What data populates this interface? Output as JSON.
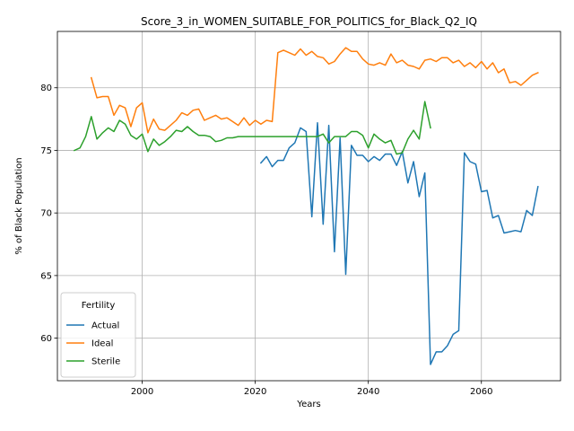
{
  "chart_data": {
    "type": "line",
    "title": "Score_3_in_WOMEN_SUITABLE_FOR_POLITICS_for_Black_Q2_IQ",
    "xlabel": "Years",
    "ylabel": "% of Black Population",
    "xlim": [
      1985,
      2074
    ],
    "ylim": [
      56.6,
      84.5
    ],
    "x_ticks": [
      2000,
      2020,
      2040,
      2060
    ],
    "y_ticks": [
      60,
      65,
      70,
      75,
      80
    ],
    "grid": true,
    "legend": {
      "title": "Fertility",
      "placement": "lower-left"
    },
    "series": [
      {
        "name": "Actual",
        "color": "#1f77b4",
        "x": [
          2021,
          2022,
          2023,
          2024,
          2025,
          2026,
          2027,
          2028,
          2029,
          2030,
          2031,
          2032,
          2033,
          2034,
          2035,
          2036,
          2037,
          2038,
          2039,
          2040,
          2041,
          2042,
          2043,
          2044,
          2045,
          2046,
          2047,
          2048,
          2049,
          2050,
          2051,
          2052,
          2053,
          2054,
          2055,
          2056,
          2057,
          2058,
          2059,
          2060,
          2061,
          2062,
          2063,
          2064,
          2065,
          2066,
          2067,
          2068,
          2069,
          2070
        ],
        "values": [
          74.0,
          74.5,
          73.7,
          74.2,
          74.2,
          75.2,
          75.6,
          76.8,
          76.5,
          69.7,
          77.2,
          69.1,
          77.0,
          66.9,
          76.0,
          65.1,
          75.4,
          74.6,
          74.6,
          74.1,
          74.5,
          74.2,
          74.7,
          74.7,
          73.8,
          74.9,
          72.4,
          74.1,
          71.3,
          73.2,
          57.9,
          58.9,
          58.9,
          59.4,
          60.3,
          60.6,
          74.8,
          74.1,
          73.9,
          71.7,
          71.8,
          69.6,
          69.8,
          68.4,
          68.5,
          68.6,
          68.5,
          70.2,
          69.8,
          72.1
        ]
      },
      {
        "name": "Ideal",
        "color": "#ff7f0e",
        "x": [
          1991,
          1992,
          1993,
          1994,
          1995,
          1996,
          1997,
          1998,
          1999,
          2000,
          2001,
          2002,
          2003,
          2004,
          2005,
          2006,
          2007,
          2008,
          2009,
          2010,
          2011,
          2012,
          2013,
          2014,
          2015,
          2016,
          2017,
          2018,
          2019,
          2020,
          2021,
          2022,
          2023,
          2024,
          2025,
          2026,
          2027,
          2028,
          2029,
          2030,
          2031,
          2032,
          2033,
          2034,
          2035,
          2036,
          2037,
          2038,
          2039,
          2040,
          2041,
          2042,
          2043,
          2044,
          2045,
          2046,
          2047,
          2048,
          2049,
          2050,
          2051,
          2052,
          2053,
          2054,
          2055,
          2056,
          2057,
          2058,
          2059,
          2060,
          2061,
          2062,
          2063,
          2064,
          2065,
          2066,
          2067,
          2068,
          2069,
          2070
        ],
        "values": [
          80.8,
          79.2,
          79.3,
          79.3,
          77.8,
          78.6,
          78.4,
          76.9,
          78.4,
          78.8,
          76.4,
          77.5,
          76.7,
          76.6,
          77.0,
          77.4,
          78.0,
          77.8,
          78.2,
          78.3,
          77.4,
          77.6,
          77.8,
          77.5,
          77.6,
          77.3,
          77.0,
          77.6,
          77.0,
          77.4,
          77.1,
          77.4,
          77.3,
          82.8,
          83.0,
          82.8,
          82.6,
          83.1,
          82.6,
          82.9,
          82.5,
          82.4,
          81.9,
          82.1,
          82.7,
          83.2,
          82.9,
          82.9,
          82.3,
          81.9,
          81.8,
          82.0,
          81.8,
          82.7,
          82.0,
          82.2,
          81.8,
          81.7,
          81.5,
          82.2,
          82.3,
          82.1,
          82.4,
          82.4,
          82.0,
          82.2,
          81.7,
          82.0,
          81.6,
          82.1,
          81.5,
          82.0,
          81.2,
          81.5,
          80.4,
          80.5,
          80.2,
          80.6,
          81.0,
          81.2
        ]
      },
      {
        "name": "Sterile",
        "color": "#2ca02c",
        "x": [
          1988,
          1989,
          1990,
          1991,
          1992,
          1993,
          1994,
          1995,
          1996,
          1997,
          1998,
          1999,
          2000,
          2001,
          2002,
          2003,
          2004,
          2005,
          2006,
          2007,
          2008,
          2009,
          2010,
          2011,
          2012,
          2013,
          2014,
          2015,
          2016,
          2017,
          2018,
          2019,
          2020,
          2021,
          2022,
          2023,
          2024,
          2025,
          2026,
          2027,
          2028,
          2029,
          2030,
          2031,
          2032,
          2033,
          2034,
          2035,
          2036,
          2037,
          2038,
          2039,
          2040,
          2041,
          2042,
          2043,
          2044,
          2045,
          2046,
          2047,
          2048,
          2049,
          2050,
          2051
        ],
        "values": [
          75.0,
          75.2,
          76.1,
          77.7,
          75.9,
          76.4,
          76.8,
          76.5,
          77.4,
          77.1,
          76.2,
          75.9,
          76.3,
          74.9,
          75.9,
          75.4,
          75.7,
          76.1,
          76.6,
          76.5,
          76.9,
          76.5,
          76.2,
          76.2,
          76.1,
          75.7,
          75.8,
          76.0,
          76.0,
          76.1,
          76.1,
          76.1,
          76.1,
          76.1,
          76.1,
          76.1,
          76.1,
          76.1,
          76.1,
          76.1,
          76.1,
          76.1,
          76.1,
          76.1,
          76.3,
          75.6,
          76.1,
          76.1,
          76.1,
          76.5,
          76.5,
          76.2,
          75.2,
          76.3,
          75.9,
          75.6,
          75.8,
          74.7,
          74.8,
          75.9,
          76.6,
          75.9,
          78.9,
          76.8
        ]
      }
    ]
  }
}
